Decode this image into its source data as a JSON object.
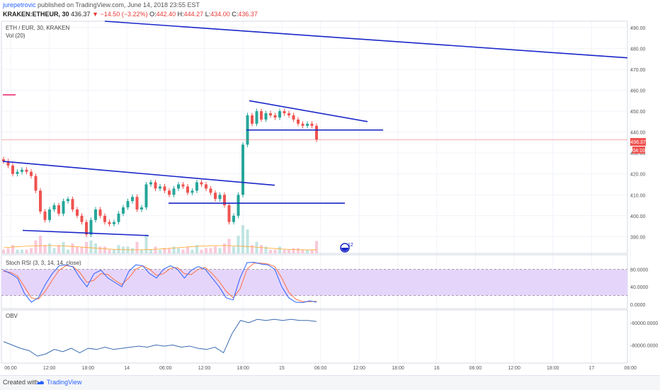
{
  "header": {
    "author": "jurepetrovic",
    "published_text": "published on TradingView.com, June 14, 2018 23:55 EST",
    "symbol": "KRAKEN:ETHEUR, 30",
    "last": "436.37",
    "arrow": "▼",
    "change": "−14.50 (−3.22%)",
    "o_label": "O:",
    "o_value": "442.40",
    "h_label": "H:",
    "h_value": "444.27",
    "l_label": "L:",
    "l_value": "434.00",
    "c_label": "C:",
    "c_value": "436.37"
  },
  "legend": {
    "instrument": "ETH / EUR, 30, KRAKEN",
    "volume": "Vol (20)",
    "stoch": "Stoch RSI (3, 3, 14, 14, close)",
    "obv": "OBV"
  },
  "price_badge": "436.37",
  "countdown_badge": "04:10",
  "event_badge": "12",
  "footer": {
    "created": "Created with",
    "brand": "TradingView"
  },
  "colors": {
    "up": "#26a69a",
    "down": "#ef5350",
    "trendline": "#1a27c9",
    "k_line": "#2962ff",
    "d_line": "#ff7043",
    "obv_line": "#3b6bb0",
    "rsi_band": "#e6d5fb",
    "magenta_marker": "#e91e63"
  },
  "chart_data": {
    "type": "candlestick",
    "price_ylim": [
      382,
      493
    ],
    "price_ticks": [
      "490.00",
      "480.00",
      "470.00",
      "460.00",
      "450.00",
      "440.00",
      "430.00",
      "420.00",
      "410.00",
      "400.00",
      "390.00"
    ],
    "x_tick_labels": [
      "06:00",
      "12:00",
      "18:00",
      "14",
      "06:00",
      "12:00",
      "18:00",
      "15",
      "06:00",
      "12:00",
      "18:00",
      "16",
      "06:00",
      "12:00",
      "18:00",
      "17",
      "06:00"
    ],
    "ohlc_close_path": [
      426,
      424,
      420,
      421,
      422,
      421,
      419,
      412,
      402,
      398,
      403,
      405,
      401,
      407,
      408,
      403,
      400,
      397,
      391,
      398,
      403,
      400,
      397,
      396,
      397,
      401,
      404,
      407,
      409,
      403,
      404,
      415,
      416,
      413,
      414,
      412,
      410,
      413,
      415,
      414,
      411,
      412,
      416,
      415,
      413,
      411,
      408,
      410,
      405,
      397,
      400,
      410,
      434,
      448,
      444,
      450,
      446,
      449,
      448,
      447,
      450,
      449,
      448,
      446,
      444,
      443,
      444,
      443,
      436.37
    ],
    "stoch_rsi": {
      "ylim": [
        0,
        100
      ],
      "ticks": [
        "80.0000",
        "40.0000",
        "0.0000"
      ],
      "band": [
        20,
        80
      ],
      "k": [
        78,
        70,
        60,
        25,
        5,
        15,
        45,
        70,
        88,
        90,
        85,
        60,
        40,
        70,
        78,
        60,
        50,
        40,
        75,
        90,
        88,
        70,
        60,
        80,
        88,
        80,
        60,
        78,
        86,
        80,
        60,
        40,
        15,
        10,
        60,
        95,
        96,
        92,
        90,
        80,
        40,
        15,
        5,
        4,
        8,
        5
      ],
      "d": [
        75,
        73,
        65,
        40,
        15,
        12,
        30,
        55,
        78,
        88,
        86,
        72,
        50,
        55,
        70,
        68,
        55,
        45,
        60,
        80,
        88,
        80,
        66,
        70,
        82,
        84,
        70,
        68,
        80,
        84,
        70,
        52,
        30,
        15,
        35,
        80,
        94,
        94,
        92,
        86,
        60,
        28,
        12,
        6,
        6,
        7
      ]
    },
    "obv": {
      "ticks": [
        "-60000.0000",
        "-80000.0000"
      ],
      "values": [
        -77000,
        -80000,
        -83000,
        -85000,
        -90000,
        -88000,
        -84000,
        -86000,
        -83000,
        -87000,
        -83000,
        -84000,
        -82000,
        -84000,
        -83000,
        -82000,
        -81000,
        -82000,
        -80000,
        -81000,
        -80000,
        -82000,
        -81000,
        -83000,
        -84000,
        -82000,
        -87000,
        -70000,
        -58000,
        -60000,
        -57000,
        -58000,
        -57000,
        -58000,
        -57000,
        -58000,
        -58000,
        -59000
      ]
    },
    "grid": true
  }
}
